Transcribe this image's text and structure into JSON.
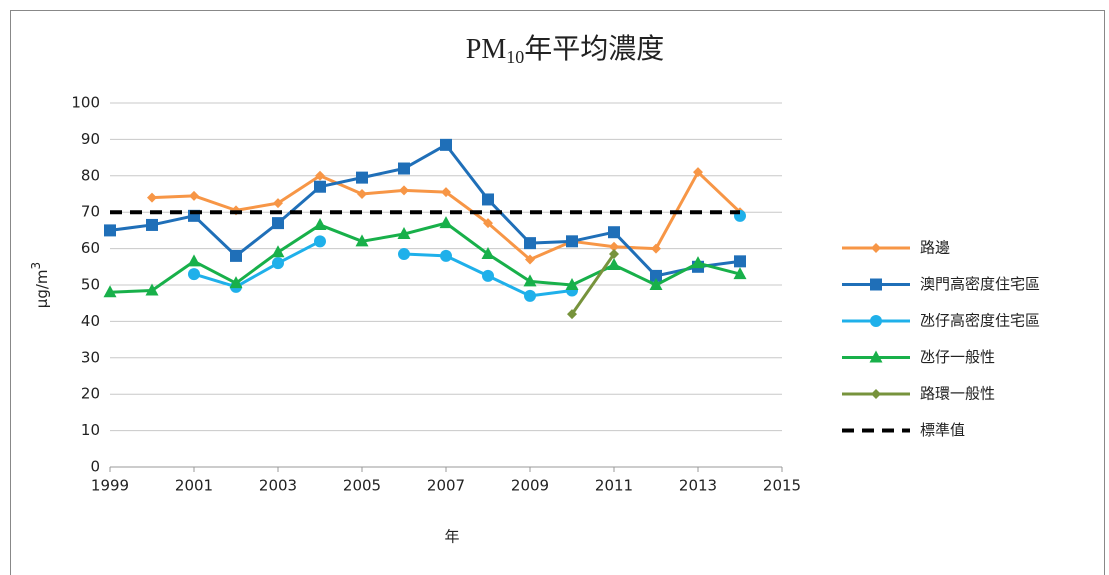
{
  "chart_data": {
    "type": "line",
    "title": "PM",
    "title_subscript": "10",
    "title_suffix": "年平均濃度",
    "xlabel": "年",
    "ylabel": "μg/m",
    "ylabel_superscript": "3",
    "x": [
      1999,
      2000,
      2001,
      2002,
      2003,
      2004,
      2005,
      2006,
      2007,
      2008,
      2009,
      2010,
      2011,
      2012,
      2013,
      2014
    ],
    "xlim": [
      1999,
      2015
    ],
    "xticks": [
      1999,
      2001,
      2003,
      2005,
      2007,
      2009,
      2011,
      2013,
      2015
    ],
    "ylim": [
      0,
      100
    ],
    "yticks": [
      0,
      10,
      20,
      30,
      40,
      50,
      60,
      70,
      80,
      90,
      100
    ],
    "grid": true,
    "legend": "right",
    "series": [
      {
        "name": "路邊",
        "color": "#F79646",
        "marker": "diamond",
        "values": [
          null,
          74,
          74.5,
          70.5,
          72.5,
          80,
          75,
          76,
          75.5,
          67,
          57,
          62,
          60.5,
          60,
          81,
          70
        ]
      },
      {
        "name": "澳門高密度住宅區",
        "color": "#1F6FB8",
        "marker": "square",
        "values": [
          65,
          66.5,
          69,
          58,
          67,
          77,
          79.5,
          82,
          88.5,
          73.5,
          61.5,
          62,
          64.5,
          52.5,
          55,
          56.5
        ]
      },
      {
        "name": "氹仔高密度住宅區",
        "color": "#1FB0EA",
        "marker": "circle",
        "values": [
          null,
          null,
          53,
          49.5,
          56,
          62,
          null,
          58.5,
          58,
          52.5,
          47,
          48.5,
          null,
          null,
          null,
          69
        ]
      },
      {
        "name": "氹仔一般性",
        "color": "#18B04A",
        "marker": "triangle",
        "values": [
          48,
          48.5,
          56.5,
          50.5,
          59,
          66.5,
          62,
          64,
          67,
          58.5,
          51,
          50,
          55.5,
          50,
          56,
          53
        ]
      },
      {
        "name": "路環一般性",
        "color": "#77933C",
        "marker": "diamond",
        "values": [
          null,
          null,
          null,
          null,
          null,
          null,
          null,
          null,
          null,
          null,
          null,
          42,
          58.5,
          null,
          null,
          null
        ]
      },
      {
        "name": "標準值",
        "color": "#000000",
        "marker": "none",
        "dash": true,
        "values": [
          70,
          70,
          70,
          70,
          70,
          70,
          70,
          70,
          70,
          70,
          70,
          70,
          70,
          70,
          70,
          70
        ]
      }
    ]
  }
}
